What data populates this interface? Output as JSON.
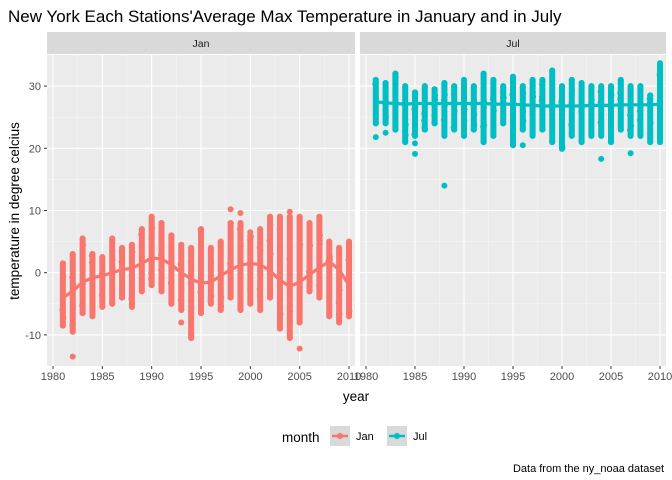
{
  "chart_data": {
    "type": "scatter",
    "title": "New York Each Stations'Average Max Temperature in January and in July",
    "xlabel": "year",
    "ylabel": "temperature in degree celcius",
    "caption": "Data from the ny_noaa dataset",
    "xlim": [
      1980,
      2010
    ],
    "ylim": [
      -15,
      35
    ],
    "x_ticks": [
      "1980",
      "1985",
      "1990",
      "1995",
      "2000",
      "2005",
      "2010"
    ],
    "y_ticks": [
      "-10",
      "0",
      "10",
      "20",
      "30"
    ],
    "grid": true,
    "legend": {
      "title": "month",
      "position": "bottom",
      "entries": [
        {
          "label": "Jan",
          "color": "#F8766D"
        },
        {
          "label": "Jul",
          "color": "#00BFC4"
        }
      ]
    },
    "facets": [
      {
        "strip": "Jan",
        "color": "#F8766D",
        "years": [
          1981,
          1982,
          1983,
          1984,
          1985,
          1986,
          1987,
          1988,
          1989,
          1990,
          1991,
          1992,
          1993,
          1994,
          1995,
          1996,
          1997,
          1998,
          1999,
          2000,
          2001,
          2002,
          2003,
          2004,
          2005,
          2006,
          2007,
          2008,
          2009,
          2010
        ],
        "range_min": [
          -8.5,
          -9.5,
          -6.5,
          -7,
          -5.5,
          -5,
          -4,
          -5.5,
          -3,
          -2,
          -3,
          -5,
          -6,
          -10.5,
          -6.5,
          -5,
          -6,
          -4,
          -6,
          -5,
          -6,
          -4,
          -9,
          -10.5,
          -8,
          -3,
          -4,
          -7,
          -8,
          -7
        ],
        "range_max": [
          1.5,
          3,
          5.5,
          3,
          2.5,
          5.5,
          4,
          4.5,
          7,
          9,
          8,
          6,
          4.5,
          4,
          7,
          4,
          5,
          8,
          8,
          6,
          7,
          9,
          9,
          9,
          9,
          8,
          9,
          5,
          4,
          5
        ],
        "smooth": [
          -4,
          -3,
          -1.5,
          -0.8,
          -0.5,
          0,
          0.5,
          0.7,
          1.5,
          2.4,
          2.2,
          1.3,
          0,
          -1,
          -1.7,
          -1.5,
          -0.5,
          0.5,
          1.2,
          1.5,
          1.3,
          0.3,
          -1.2,
          -2.2,
          -1.5,
          -0.3,
          0.8,
          1.8,
          0.5,
          -2
        ],
        "outliers": [
          [
            1982,
            -13.5
          ],
          [
            1993,
            -8
          ],
          [
            1998,
            10.2
          ],
          [
            1999,
            9.6
          ],
          [
            2000,
            6.5
          ],
          [
            2003,
            3.7
          ],
          [
            2004,
            9.8
          ],
          [
            2005,
            -12.2
          ],
          [
            2010,
            -7
          ]
        ]
      },
      {
        "strip": "Jul",
        "color": "#00BFC4",
        "years": [
          1981,
          1982,
          1983,
          1984,
          1985,
          1986,
          1987,
          1988,
          1989,
          1990,
          1991,
          1992,
          1993,
          1994,
          1995,
          1996,
          1997,
          1998,
          1999,
          2000,
          2001,
          2002,
          2003,
          2004,
          2005,
          2006,
          2007,
          2008,
          2009,
          2010
        ],
        "range_min": [
          24,
          24,
          23,
          21,
          22,
          23,
          24,
          22,
          23,
          22,
          23,
          21,
          22,
          24,
          20.5,
          23,
          22,
          23,
          21,
          20,
          22,
          21,
          22,
          22,
          21,
          23,
          22,
          22,
          21,
          21
        ],
        "range_max": [
          31,
          30.5,
          32,
          30,
          29,
          30,
          29.5,
          30.5,
          30,
          31,
          30,
          32,
          31,
          30,
          31.5,
          30,
          31,
          31,
          32.5,
          30,
          31,
          30.5,
          30,
          30,
          30,
          31,
          30,
          30,
          28.5,
          33.5
        ],
        "smooth": [
          27.5,
          27.3,
          27.2,
          27.1,
          27.2,
          27.2,
          27.2,
          27.2,
          27.2,
          27.2,
          27.2,
          27.2,
          27.1,
          27.1,
          27.1,
          27,
          26.9,
          26.8,
          26.8,
          26.8,
          26.8,
          26.8,
          26.9,
          26.9,
          26.9,
          27,
          27,
          27,
          27,
          27.1
        ],
        "outliers": [
          [
            1981,
            21.8
          ],
          [
            1982,
            22.5
          ],
          [
            1985,
            20.8
          ],
          [
            1985,
            19.1
          ],
          [
            1988,
            14
          ],
          [
            1990,
            22
          ],
          [
            1996,
            20.5
          ],
          [
            2000,
            19.9
          ],
          [
            2004,
            18.3
          ],
          [
            2007,
            19.2
          ],
          [
            2010,
            33.7
          ]
        ]
      }
    ]
  }
}
